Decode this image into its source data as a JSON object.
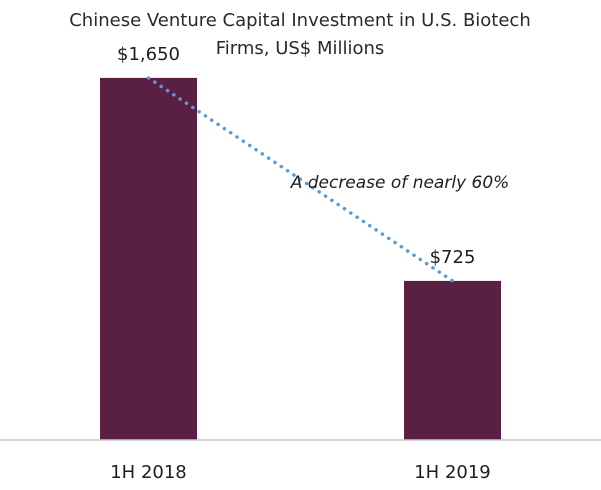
{
  "chart_data": {
    "type": "bar",
    "title": "Chinese Venture Capital Investment in U.S. Biotech Firms, US$ Millions",
    "title_lines": [
      "Chinese Venture Capital Investment in U.S. Biotech",
      "Firms, US$ Millions"
    ],
    "categories": [
      "1H 2018",
      "1H 2019"
    ],
    "values": [
      1650,
      725
    ],
    "data_labels": [
      "$1,650",
      "$725"
    ],
    "ylim": [
      0,
      1800
    ],
    "xlabel": "",
    "ylabel": "",
    "grid": false,
    "annotation": "A decrease of nearly 60%",
    "colors": {
      "bar": "#5a2044",
      "trend_line": "#5b9bd5",
      "axis": "#c8c8c8",
      "background": "#ffffff"
    }
  }
}
